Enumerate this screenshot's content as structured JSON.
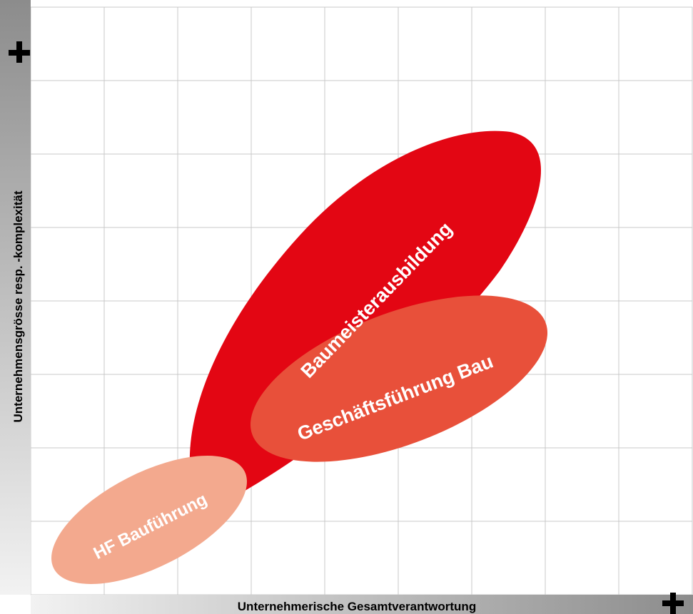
{
  "x_axis": {
    "label": "Unternehmerische Gesamtverantwortung",
    "end_marker": "+"
  },
  "y_axis": {
    "label": "Unternehmensgrösse resp. -komplexität",
    "end_marker": "+"
  },
  "regions": {
    "baumeister": {
      "label": "Baumeisterausbildung",
      "color": "#e30613"
    },
    "geschaeftsfuehrung": {
      "label": "Geschäftsführung Bau",
      "color": "#e8503a"
    },
    "hf": {
      "label": "HF Bauführung",
      "color": "#f3a98e"
    }
  },
  "colors": {
    "grid": "#c8c8c8",
    "axis_gradient_dark": "#8c8c8c",
    "axis_gradient_light": "#f2f2f2"
  }
}
